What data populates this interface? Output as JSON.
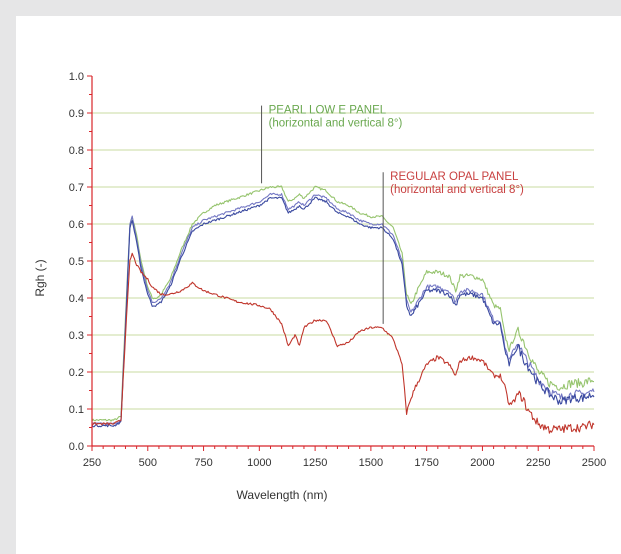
{
  "chart_data": {
    "type": "line",
    "title": "",
    "xlabel": "Wavelength (nm)",
    "ylabel": "Rgh (-)",
    "xlim": [
      250,
      2500
    ],
    "ylim": [
      0.0,
      1.0
    ],
    "x_ticks": [
      "250",
      "500",
      "750",
      "1000",
      "1250",
      "1500",
      "1750",
      "2000",
      "2250",
      "2500"
    ],
    "y_ticks": [
      "0.0",
      "0.1",
      "0.2",
      "0.3",
      "0.4",
      "0.5",
      "0.6",
      "0.7",
      "0.8",
      "0.9",
      "1.0"
    ],
    "grid": "horizontal",
    "annotations": [
      {
        "line1": "PEARL LOW E PANEL",
        "line2": "(horizontal and vertical 8°)",
        "color": "#6aa84f",
        "pointer_x": 1010,
        "pointer_y_top": 0.92,
        "pointer_y_bottom": 0.71
      },
      {
        "line1": "REGULAR OPAL PANEL",
        "line2": "(horizontal and vertical 8°)",
        "color": "#c84040",
        "pointer_x": 1555,
        "pointer_y_top": 0.74,
        "pointer_y_bottom": 0.33
      }
    ],
    "x": [
      250,
      300,
      350,
      380,
      400,
      420,
      430,
      450,
      470,
      500,
      520,
      540,
      560,
      600,
      650,
      700,
      750,
      800,
      900,
      1000,
      1050,
      1100,
      1130,
      1160,
      1180,
      1200,
      1250,
      1300,
      1350,
      1400,
      1450,
      1500,
      1550,
      1600,
      1640,
      1660,
      1680,
      1700,
      1750,
      1800,
      1850,
      1880,
      1900,
      1950,
      2000,
      2050,
      2080,
      2100,
      2120,
      2140,
      2160,
      2180,
      2200,
      2250,
      2300,
      2350,
      2400,
      2450,
      2500
    ],
    "series": [
      {
        "name": "",
        "color": "#96c46e",
        "values": [
          0.07,
          0.07,
          0.07,
          0.08,
          0.35,
          0.6,
          0.62,
          0.57,
          0.5,
          0.43,
          0.4,
          0.4,
          0.41,
          0.45,
          0.53,
          0.6,
          0.63,
          0.65,
          0.67,
          0.69,
          0.7,
          0.7,
          0.66,
          0.67,
          0.68,
          0.67,
          0.7,
          0.69,
          0.66,
          0.65,
          0.63,
          0.62,
          0.62,
          0.59,
          0.52,
          0.41,
          0.38,
          0.41,
          0.47,
          0.47,
          0.46,
          0.42,
          0.46,
          0.46,
          0.45,
          0.38,
          0.37,
          0.3,
          0.26,
          0.29,
          0.31,
          0.29,
          0.26,
          0.2,
          0.17,
          0.16,
          0.17,
          0.17,
          0.18
        ]
      },
      {
        "name": "",
        "color": "#7478c4",
        "values": [
          0.06,
          0.06,
          0.06,
          0.07,
          0.33,
          0.6,
          0.62,
          0.56,
          0.49,
          0.42,
          0.39,
          0.39,
          0.4,
          0.44,
          0.52,
          0.59,
          0.61,
          0.62,
          0.64,
          0.66,
          0.68,
          0.68,
          0.64,
          0.65,
          0.66,
          0.65,
          0.68,
          0.67,
          0.64,
          0.63,
          0.61,
          0.6,
          0.6,
          0.57,
          0.5,
          0.39,
          0.36,
          0.38,
          0.43,
          0.43,
          0.42,
          0.39,
          0.42,
          0.42,
          0.41,
          0.34,
          0.34,
          0.27,
          0.23,
          0.26,
          0.28,
          0.25,
          0.23,
          0.18,
          0.15,
          0.13,
          0.14,
          0.14,
          0.15
        ]
      },
      {
        "name": "",
        "color": "#3b4aa0",
        "values": [
          0.055,
          0.055,
          0.055,
          0.065,
          0.32,
          0.59,
          0.61,
          0.55,
          0.48,
          0.41,
          0.38,
          0.38,
          0.39,
          0.43,
          0.51,
          0.58,
          0.6,
          0.61,
          0.63,
          0.65,
          0.67,
          0.67,
          0.63,
          0.64,
          0.65,
          0.64,
          0.67,
          0.66,
          0.63,
          0.62,
          0.6,
          0.59,
          0.59,
          0.56,
          0.49,
          0.38,
          0.35,
          0.37,
          0.42,
          0.42,
          0.41,
          0.38,
          0.41,
          0.41,
          0.4,
          0.33,
          0.33,
          0.26,
          0.22,
          0.25,
          0.27,
          0.24,
          0.22,
          0.17,
          0.14,
          0.12,
          0.13,
          0.13,
          0.14
        ]
      },
      {
        "name": "",
        "color": "#c0362c",
        "values": [
          0.06,
          0.06,
          0.06,
          0.07,
          0.3,
          0.5,
          0.52,
          0.49,
          0.47,
          0.45,
          0.43,
          0.42,
          0.41,
          0.41,
          0.42,
          0.44,
          0.42,
          0.41,
          0.39,
          0.38,
          0.37,
          0.33,
          0.27,
          0.3,
          0.27,
          0.32,
          0.34,
          0.34,
          0.27,
          0.28,
          0.31,
          0.32,
          0.32,
          0.29,
          0.22,
          0.09,
          0.13,
          0.16,
          0.22,
          0.24,
          0.22,
          0.19,
          0.23,
          0.24,
          0.23,
          0.19,
          0.19,
          0.16,
          0.11,
          0.12,
          0.14,
          0.13,
          0.1,
          0.06,
          0.045,
          0.045,
          0.05,
          0.05,
          0.06
        ]
      }
    ]
  }
}
